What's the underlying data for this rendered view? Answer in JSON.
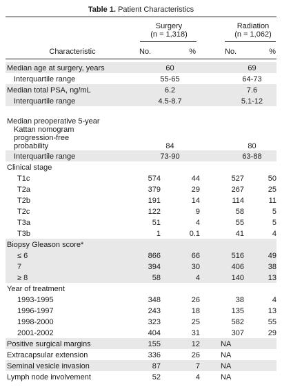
{
  "title": {
    "prefix": "Table 1.",
    "text": " Patient Characteristics"
  },
  "groups": {
    "surgery": {
      "name": "Surgery",
      "n": "(n = 1,318)"
    },
    "radiation": {
      "name": "Radiation",
      "n": "(n = 1,062)"
    }
  },
  "columns": {
    "characteristic": "Characteristic",
    "no": "No.",
    "pct": "%"
  },
  "rows": {
    "median_age": {
      "label": "Median age at surgery, years",
      "surgery": "60",
      "radiation": "69"
    },
    "age_iqr": {
      "label": "Interquartile range",
      "surgery": "55-65",
      "radiation": "64-73"
    },
    "median_psa": {
      "label": "Median total PSA, ng/mL",
      "surgery": "6.2",
      "radiation": "7.6"
    },
    "psa_iqr": {
      "label": "Interquartile range",
      "surgery": "4.5-8.7",
      "radiation": "5.1-12"
    },
    "kattan_l1": "Median preoperative 5-year",
    "kattan_l2": "Kattan nomogram",
    "kattan_l3": "progression-free",
    "kattan_l4": "probability",
    "kattan": {
      "surgery": "84",
      "radiation": "80"
    },
    "kattan_iqr": {
      "label": "Interquartile range",
      "surgery": "73-90",
      "radiation": "63-88"
    }
  },
  "clinical_stage": {
    "header": "Clinical stage",
    "items": [
      {
        "label": "T1c",
        "s_no": "574",
        "s_pct": "44",
        "r_no": "527",
        "r_pct": "50"
      },
      {
        "label": "T2a",
        "s_no": "379",
        "s_pct": "29",
        "r_no": "267",
        "r_pct": "25"
      },
      {
        "label": "T2b",
        "s_no": "191",
        "s_pct": "14",
        "r_no": "114",
        "r_pct": "11"
      },
      {
        "label": "T2c",
        "s_no": "122",
        "s_pct": "9",
        "r_no": "58",
        "r_pct": "5"
      },
      {
        "label": "T3a",
        "s_no": "51",
        "s_pct": "4",
        "r_no": "55",
        "r_pct": "5"
      },
      {
        "label": "T3b",
        "s_no": "1",
        "s_pct": "0.1",
        "r_no": "41",
        "r_pct": "4"
      }
    ]
  },
  "gleason": {
    "header": "Biopsy Gleason score*",
    "items": [
      {
        "label": "≤ 6",
        "s_no": "866",
        "s_pct": "66",
        "r_no": "516",
        "r_pct": "49"
      },
      {
        "label": "7",
        "s_no": "394",
        "s_pct": "30",
        "r_no": "406",
        "r_pct": "38"
      },
      {
        "label": "≥ 8",
        "s_no": "58",
        "s_pct": "4",
        "r_no": "140",
        "r_pct": "13"
      }
    ]
  },
  "year": {
    "header": "Year of treatment",
    "items": [
      {
        "label": "1993-1995",
        "s_no": "348",
        "s_pct": "26",
        "r_no": "38",
        "r_pct": "4"
      },
      {
        "label": "1996-1997",
        "s_no": "243",
        "s_pct": "18",
        "r_no": "135",
        "r_pct": "13"
      },
      {
        "label": "1998-2000",
        "s_no": "323",
        "s_pct": "25",
        "r_no": "582",
        "r_pct": "55"
      },
      {
        "label": "2001-2002",
        "s_no": "404",
        "s_pct": "31",
        "r_no": "307",
        "r_pct": "29"
      }
    ]
  },
  "pathology": [
    {
      "label": "Positive surgical margins",
      "s_no": "155",
      "s_pct": "12",
      "r": "NA"
    },
    {
      "label": "Extracapsular extension",
      "s_no": "336",
      "s_pct": "26",
      "r": "NA"
    },
    {
      "label": "Seminal vesicle invasion",
      "s_no": "87",
      "s_pct": "7",
      "r": "NA"
    },
    {
      "label": "Lymph node involvement",
      "s_no": "52",
      "s_pct": "4",
      "r": "NA"
    }
  ]
}
